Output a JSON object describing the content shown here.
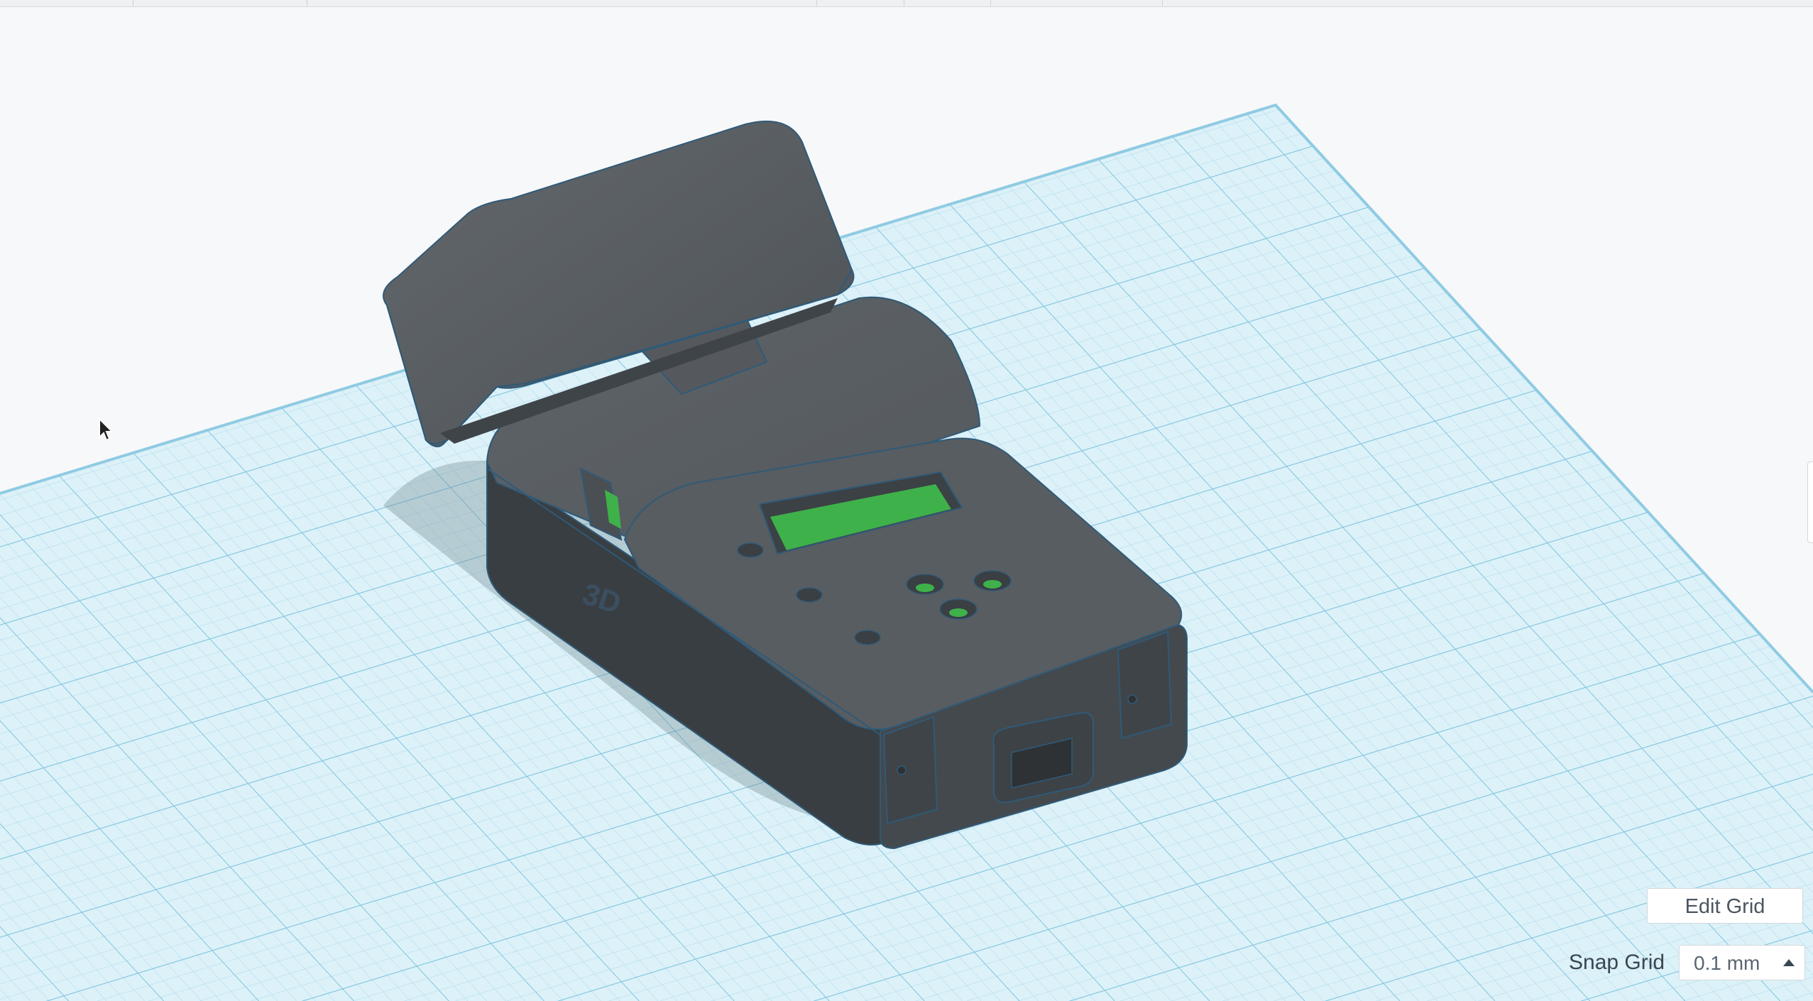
{
  "grid_controls": {
    "edit_grid_label": "Edit Grid",
    "snap_grid_label": "Snap Grid",
    "snap_grid_value": "0.1 mm"
  },
  "model": {
    "embossed_text": "3D"
  },
  "colors": {
    "workplane_fill": "#dcf1f8",
    "grid_line": "#9fd2e6",
    "grid_major": "#74bedb",
    "body_dark": "#3a3f43",
    "body_top": "#5b6064",
    "body_side": "#464b4f",
    "screen_green": "#3fb14a",
    "outline": "#2f5a78"
  }
}
